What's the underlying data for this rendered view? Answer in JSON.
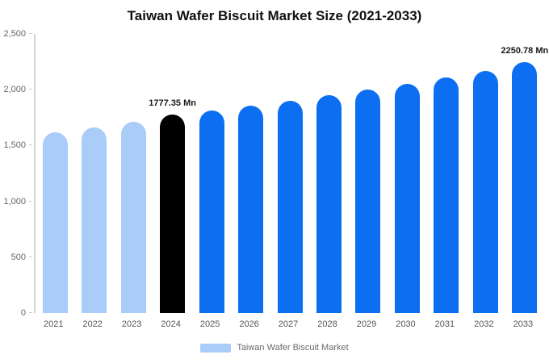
{
  "title": "Taiwan Wafer Biscuit Market Size (2021-2033)",
  "legend": {
    "label": "Taiwan Wafer Biscuit Market",
    "swatch_color": "#A9CDF8"
  },
  "colors": {
    "historic_bar": "#A9CDF8",
    "base_year_bar": "#000000",
    "forecast_bar": "#0C6FF2",
    "axis": "#d4d4d4"
  },
  "chart_data": {
    "type": "bar",
    "title": "Taiwan Wafer Biscuit Market Size (2021-2033)",
    "categories": [
      "2021",
      "2022",
      "2023",
      "2024",
      "2025",
      "2026",
      "2027",
      "2028",
      "2029",
      "2030",
      "2031",
      "2032",
      "2033"
    ],
    "values": [
      1620,
      1665,
      1710,
      1777.35,
      1815,
      1855,
      1900,
      1950,
      2000,
      2055,
      2110,
      2170,
      2250.78
    ],
    "bar_colors": [
      "#A9CDF8",
      "#A9CDF8",
      "#A9CDF8",
      "#000000",
      "#0C6FF2",
      "#0C6FF2",
      "#0C6FF2",
      "#0C6FF2",
      "#0C6FF2",
      "#0C6FF2",
      "#0C6FF2",
      "#0C6FF2",
      "#0C6FF2"
    ],
    "annotations": [
      {
        "index": 3,
        "text": "1777.35 Mn"
      },
      {
        "index": 12,
        "text": "2250.78 Mn"
      }
    ],
    "xlabel": "",
    "ylabel": "",
    "ylim": [
      0,
      2500
    ],
    "yticks": [
      {
        "value": 0,
        "label": "0"
      },
      {
        "value": 500,
        "label": "500"
      },
      {
        "value": 1000,
        "label": "1,000"
      },
      {
        "value": 1500,
        "label": "1,500"
      },
      {
        "value": 2000,
        "label": "2,000"
      },
      {
        "value": 2500,
        "label": "2,500"
      }
    ],
    "grid": false,
    "legend_position": "bottom",
    "unit": "Mn"
  }
}
